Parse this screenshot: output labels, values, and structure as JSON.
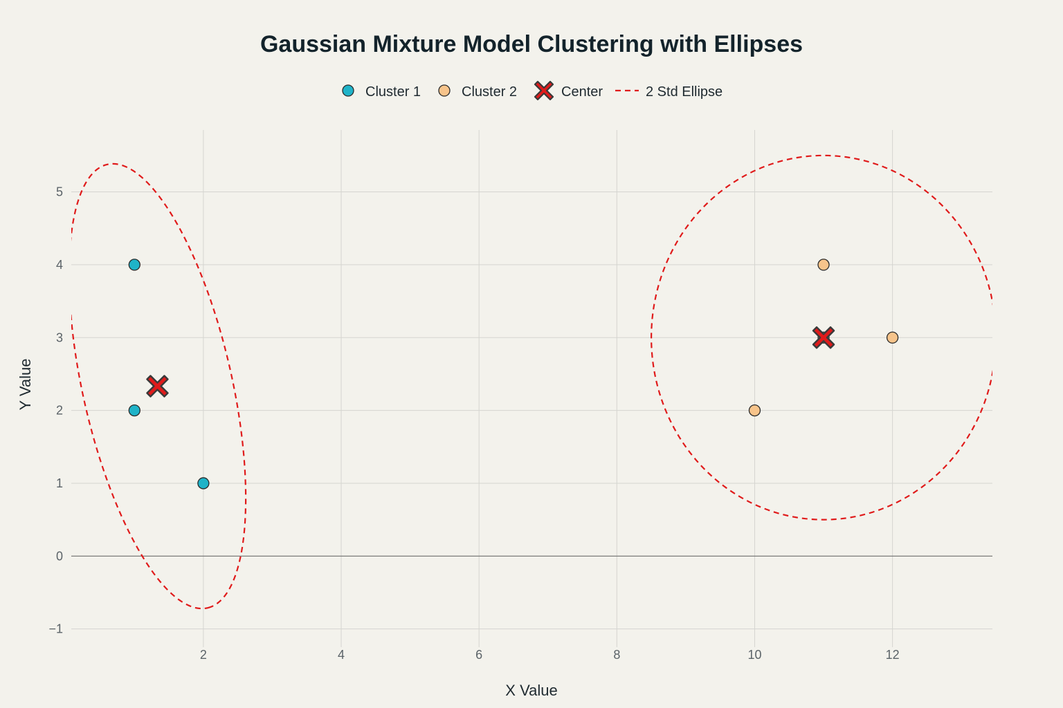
{
  "chart_data": {
    "type": "scatter",
    "title": "Gaussian Mixture Model Clustering with Ellipses",
    "xlabel": "X Value",
    "ylabel": "Y Value",
    "xlim": [
      0.083,
      13.45
    ],
    "ylim": [
      -1.25,
      5.85
    ],
    "x_ticks": [
      2,
      4,
      6,
      8,
      10,
      12
    ],
    "y_ticks": [
      -1,
      0,
      1,
      2,
      3,
      4,
      5
    ],
    "grid": true,
    "legend_position": "top-center",
    "series": [
      {
        "name": "Cluster 1",
        "kind": "points",
        "color": "#1fb3c8",
        "x": [
          1,
          1,
          2
        ],
        "y": [
          4,
          2,
          1
        ]
      },
      {
        "name": "Cluster 2",
        "kind": "points",
        "color": "#f7c48b",
        "x": [
          11,
          11,
          12,
          10
        ],
        "y": [
          4,
          3,
          3,
          2
        ]
      },
      {
        "name": "Center",
        "kind": "centers",
        "color": "#e01b1b",
        "x": [
          1.333,
          11
        ],
        "y": [
          2.333,
          3
        ]
      },
      {
        "name": "2 Std Ellipse",
        "kind": "ellipses",
        "color": "#e01b1b",
        "ellipses": [
          {
            "cx": 1.333,
            "cy": 2.333,
            "semi_major": 3.13,
            "semi_minor": 1.08,
            "angle_deg": -76.4
          },
          {
            "cx": 11,
            "cy": 3,
            "semi_major": 2.5,
            "semi_minor": 2.5,
            "angle_deg": 0
          }
        ]
      }
    ]
  }
}
